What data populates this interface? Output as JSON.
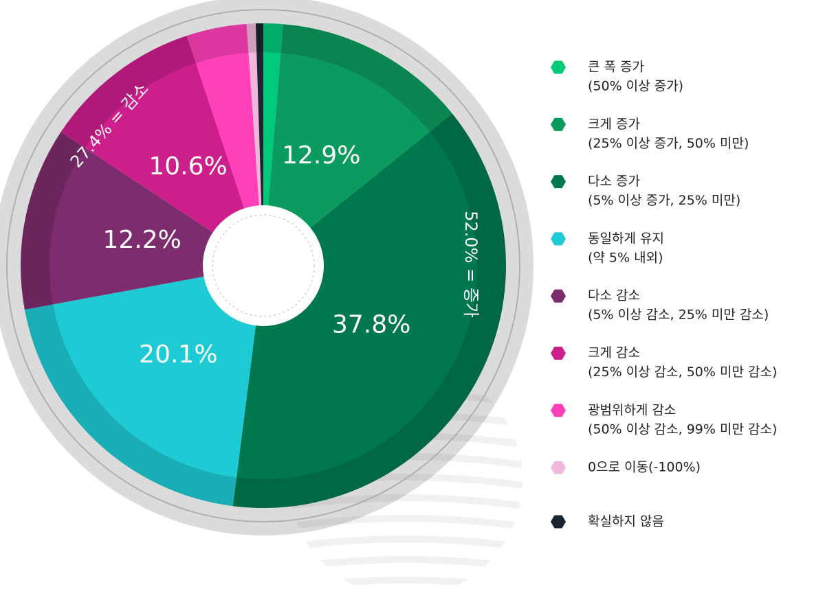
{
  "chart_data": {
    "type": "pie",
    "categories": [
      "큰 폭 증가",
      "크게 증가",
      "다소 증가",
      "동일하게 유지",
      "다소 감소",
      "크게 감소",
      "광범위하게 감소",
      "0으로 이동(-100%)",
      "확실하지 않음"
    ],
    "descriptions": [
      "(50% 이상 증가)",
      "(25% 이상 증가, 50% 미만)",
      "(5% 이상 증가, 25% 미만)",
      "(약 5% 내외)",
      "(5% 이상 감소, 25% 미만 감소)",
      "(25% 이상 감소, 50% 미만 감소)",
      "(50% 이상 감소, 99% 미만 감소)",
      null,
      null
    ],
    "values": [
      1.3,
      12.9,
      37.8,
      20.1,
      12.2,
      10.6,
      4.0,
      0.6,
      0.5
    ],
    "value_labels": [
      null,
      "12.9%",
      "37.8%",
      "20.1%",
      "12.2%",
      "10.6%",
      null,
      null,
      null
    ],
    "colors": [
      "#00c97a",
      "#0c9b5e",
      "#00784f",
      "#1ecad3",
      "#7d2d6e",
      "#cc1f8c",
      "#ff40b8",
      "#f2b8dc",
      "#1b2430"
    ],
    "annotations": [
      "52.0% = 증가",
      "27.4% = 감소"
    ]
  }
}
